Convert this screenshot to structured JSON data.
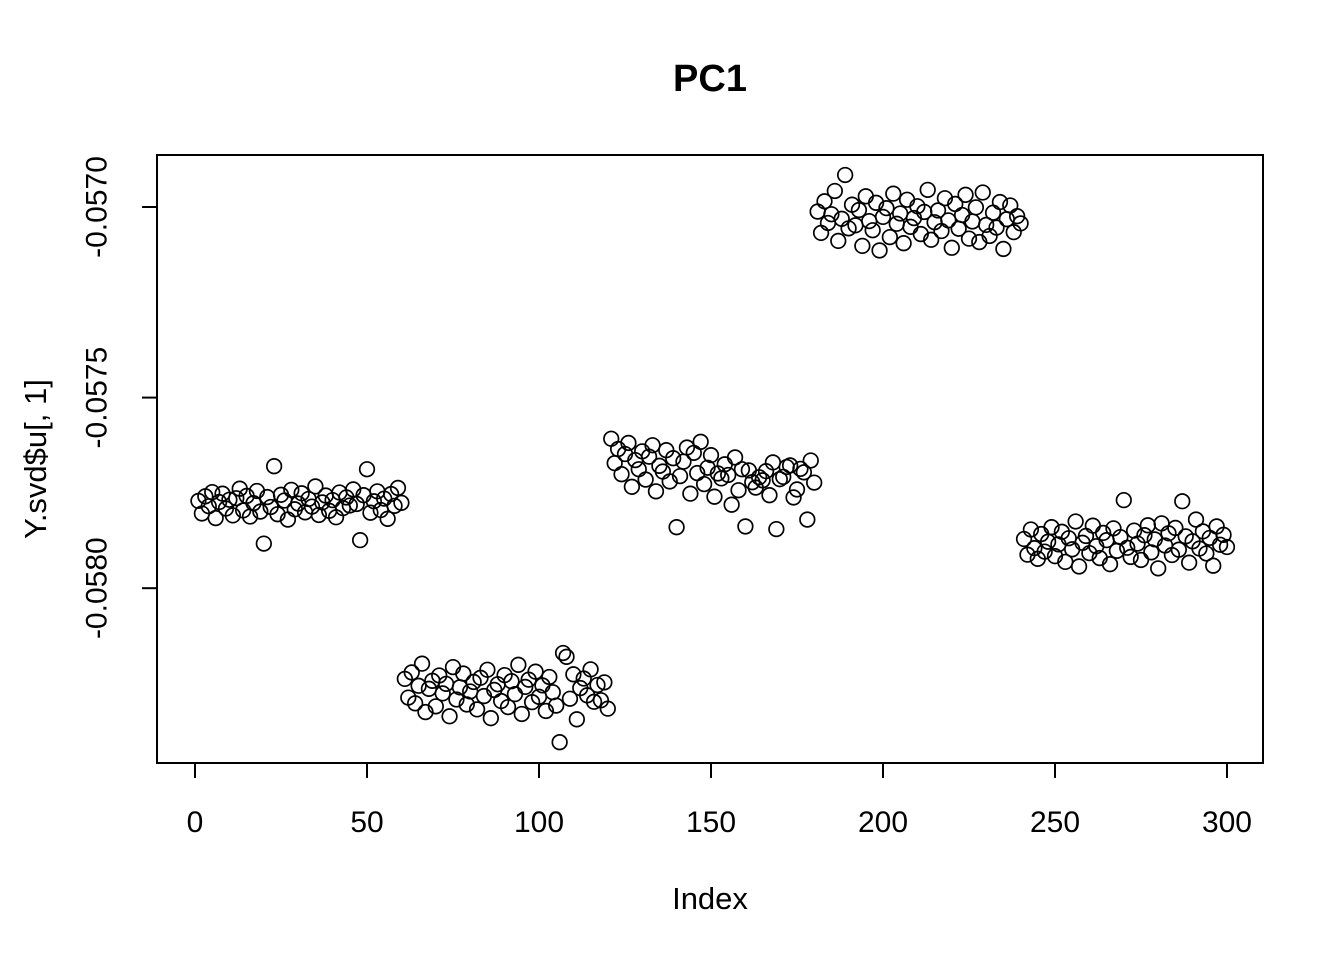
{
  "window": {
    "background": "#ffffff",
    "foreground": "#000000"
  },
  "chart_data": {
    "type": "scatter",
    "title": "PC1",
    "xlabel": "Index",
    "ylabel": "Y.svd$u[, 1]",
    "x_rule": "x = point index 1..300, evenly spaced",
    "x_tick_values": [
      0,
      50,
      100,
      150,
      200,
      250,
      300
    ],
    "x_tick_labels": [
      "0",
      "50",
      "100",
      "150",
      "200",
      "250",
      "300"
    ],
    "y_tick_values": [
      -0.057,
      -0.0575,
      -0.058
    ],
    "y_tick_labels": [
      "-0.0570",
      "-0.0575",
      "-0.0580"
    ],
    "xlim": [
      -11.05,
      310.47
    ],
    "ylim": [
      -0.0584586,
      -0.0568636
    ],
    "grid": false,
    "legend": "none",
    "marker": {
      "shape": "open-circle",
      "stroke": "#000000",
      "fill": "none"
    },
    "clusters": [
      {
        "index_range": [
          1,
          60
        ],
        "approx_mean": -0.05778
      },
      {
        "index_range": [
          61,
          120
        ],
        "approx_mean": -0.05826
      },
      {
        "index_range": [
          121,
          180
        ],
        "approx_mean": -0.05771
      },
      {
        "index_range": [
          181,
          240
        ],
        "approx_mean": -0.05703
      },
      {
        "index_range": [
          241,
          300
        ],
        "approx_mean": -0.05789
      }
    ],
    "y_values": [
      -0.057771,
      -0.057804,
      -0.057759,
      -0.057785,
      -0.057748,
      -0.057816,
      -0.057774,
      -0.057752,
      -0.057791,
      -0.057768,
      -0.057809,
      -0.057764,
      -0.057739,
      -0.057796,
      -0.057758,
      -0.057812,
      -0.057777,
      -0.057745,
      -0.057799,
      -0.057883,
      -0.057761,
      -0.057787,
      -0.05768,
      -0.057806,
      -0.057755,
      -0.05777,
      -0.05782,
      -0.057742,
      -0.057793,
      -0.057778,
      -0.057751,
      -0.057801,
      -0.057766,
      -0.057786,
      -0.057733,
      -0.057808,
      -0.057775,
      -0.057757,
      -0.057797,
      -0.057769,
      -0.057814,
      -0.057749,
      -0.05779,
      -0.057762,
      -0.057783,
      -0.057741,
      -0.057779,
      -0.057874,
      -0.057756,
      -0.057688,
      -0.057802,
      -0.057772,
      -0.057746,
      -0.057795,
      -0.057765,
      -0.057818,
      -0.057753,
      -0.057784,
      -0.057737,
      -0.057776,
      -0.058238,
      -0.058287,
      -0.058221,
      -0.058302,
      -0.058256,
      -0.058198,
      -0.058325,
      -0.058264,
      -0.058243,
      -0.05831,
      -0.058229,
      -0.058276,
      -0.058251,
      -0.058336,
      -0.058207,
      -0.058292,
      -0.05826,
      -0.058224,
      -0.058305,
      -0.058271,
      -0.058246,
      -0.058318,
      -0.058235,
      -0.058283,
      -0.058214,
      -0.058341,
      -0.058267,
      -0.058252,
      -0.058296,
      -0.058228,
      -0.058312,
      -0.058244,
      -0.058278,
      -0.058201,
      -0.05833,
      -0.058259,
      -0.05824,
      -0.058299,
      -0.058219,
      -0.058285,
      -0.058255,
      -0.058322,
      -0.058233,
      -0.058273,
      -0.058308,
      -0.058404,
      -0.05817,
      -0.05818,
      -0.05829,
      -0.058226,
      -0.058344,
      -0.058262,
      -0.058237,
      -0.058281,
      -0.058213,
      -0.058298,
      -0.058254,
      -0.058294,
      -0.058247,
      -0.058316,
      -0.057608,
      -0.057672,
      -0.057635,
      -0.057701,
      -0.057648,
      -0.057619,
      -0.057734,
      -0.057664,
      -0.057688,
      -0.057641,
      -0.057715,
      -0.057655,
      -0.057625,
      -0.057746,
      -0.057679,
      -0.057694,
      -0.057638,
      -0.05772,
      -0.057659,
      -0.05784,
      -0.057706,
      -0.057668,
      -0.057631,
      -0.057752,
      -0.057645,
      -0.057698,
      -0.057616,
      -0.057727,
      -0.057684,
      -0.057651,
      -0.05776,
      -0.057699,
      -0.057712,
      -0.057675,
      -0.057703,
      -0.057781,
      -0.057657,
      -0.057743,
      -0.057688,
      -0.057838,
      -0.057691,
      -0.057722,
      -0.057736,
      -0.057709,
      -0.057717,
      -0.057693,
      -0.057756,
      -0.05767,
      -0.057845,
      -0.057714,
      -0.057708,
      -0.057682,
      -0.057678,
      -0.057762,
      -0.057741,
      -0.057687,
      -0.057696,
      -0.05782,
      -0.057665,
      -0.057723,
      -0.057012,
      -0.057068,
      -0.056985,
      -0.057042,
      -0.057019,
      -0.056958,
      -0.057089,
      -0.057031,
      -0.056916,
      -0.057056,
      -0.056994,
      -0.057048,
      -0.057008,
      -0.057102,
      -0.056972,
      -0.057037,
      -0.057061,
      -0.056989,
      -0.057114,
      -0.057026,
      -0.057003,
      -0.057079,
      -0.056965,
      -0.057044,
      -0.057017,
      -0.057095,
      -0.056981,
      -0.057052,
      -0.057029,
      -0.056998,
      -0.057071,
      -0.057013,
      -0.056955,
      -0.057086,
      -0.05704,
      -0.057009,
      -0.057063,
      -0.056977,
      -0.057035,
      -0.057107,
      -0.056992,
      -0.057057,
      -0.057021,
      -0.056968,
      -0.057083,
      -0.057038,
      -0.057001,
      -0.057092,
      -0.056962,
      -0.057047,
      -0.057076,
      -0.057015,
      -0.057054,
      -0.056987,
      -0.05711,
      -0.057032,
      -0.056996,
      -0.057066,
      -0.057024,
      -0.057043,
      -0.057871,
      -0.057912,
      -0.057846,
      -0.057895,
      -0.057923,
      -0.057858,
      -0.057904,
      -0.057878,
      -0.05784,
      -0.057916,
      -0.057885,
      -0.057852,
      -0.057931,
      -0.057869,
      -0.057898,
      -0.057825,
      -0.057943,
      -0.057881,
      -0.057863,
      -0.057908,
      -0.057836,
      -0.05789,
      -0.057921,
      -0.057855,
      -0.057874,
      -0.057937,
      -0.057843,
      -0.057902,
      -0.057866,
      -0.057769,
      -0.057894,
      -0.057918,
      -0.057849,
      -0.057883,
      -0.057926,
      -0.057861,
      -0.057835,
      -0.057906,
      -0.057872,
      -0.057948,
      -0.05783,
      -0.057888,
      -0.057856,
      -0.057913,
      -0.057842,
      -0.057899,
      -0.057772,
      -0.057864,
      -0.057933,
      -0.057877,
      -0.05782,
      -0.057896,
      -0.057851,
      -0.057909,
      -0.057868,
      -0.057941,
      -0.057838,
      -0.057886,
      -0.05786,
      -0.057892
    ]
  }
}
